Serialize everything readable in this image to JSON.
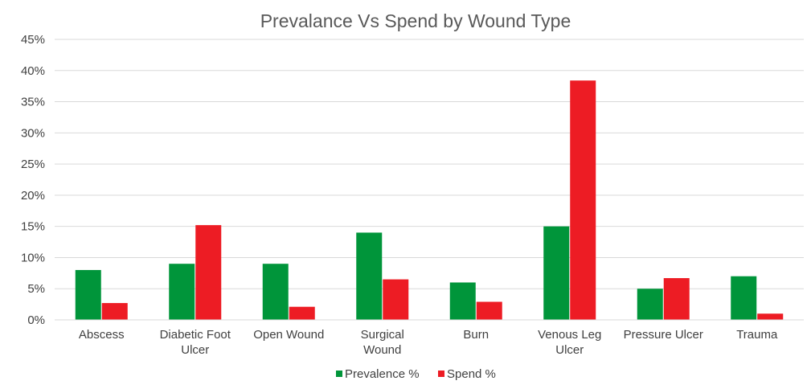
{
  "chart_data": {
    "type": "bar",
    "title": "Prevalance Vs Spend by Wound Type",
    "xlabel": "",
    "ylabel": "",
    "categories": [
      [
        "Abscess"
      ],
      [
        "Diabetic Foot",
        "Ulcer"
      ],
      [
        "Open Wound"
      ],
      [
        "Surgical",
        "Wound"
      ],
      [
        "Burn"
      ],
      [
        "Venous Leg",
        "Ulcer"
      ],
      [
        "Pressure Ulcer"
      ],
      [
        "Trauma"
      ]
    ],
    "series": [
      {
        "name": "Prevalence %",
        "color": "#00953A",
        "values": [
          8,
          9,
          9,
          14,
          6,
          15,
          5,
          7
        ]
      },
      {
        "name": "Spend %",
        "color": "#ED1C24",
        "values": [
          2.7,
          15.2,
          2.1,
          6.5,
          2.9,
          38.4,
          6.7,
          1.0
        ]
      }
    ],
    "ylim": [
      0,
      45
    ],
    "yticks": [
      0,
      5,
      10,
      15,
      20,
      25,
      30,
      35,
      40,
      45
    ],
    "ytick_labels": [
      "0%",
      "5%",
      "10%",
      "15%",
      "20%",
      "25%",
      "30%",
      "35%",
      "40%",
      "45%"
    ],
    "grid": true,
    "legend_position": "bottom"
  }
}
